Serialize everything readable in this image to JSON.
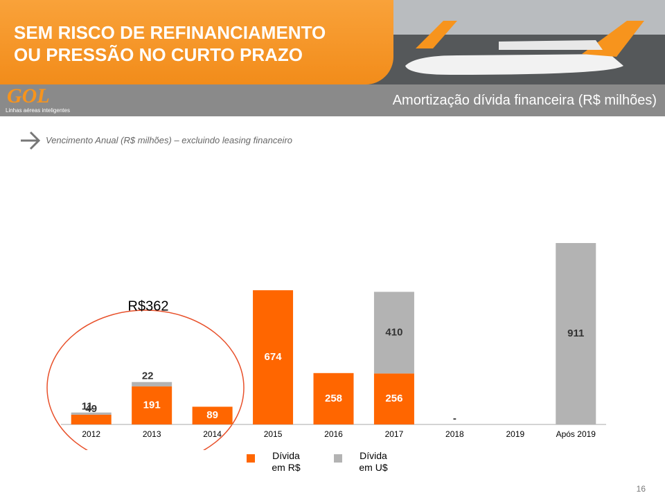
{
  "slide": {
    "heading": [
      "SEM RISCO DE REFINANCIAMENTO",
      "OU PRESSÃO NO CURTO PRAZO"
    ],
    "logo": "GOL",
    "logo_tagline": "Linhas aéreas inteligentes",
    "page": "16"
  },
  "chart_data": {
    "type": "stacked_bar",
    "title": "Amortização dívida financeira (R$ milhões)",
    "subtitle": "Vencimento Anual (R$ milhões) – excluindo leasing financeiro",
    "annotation": "R$362",
    "categories": [
      "2012",
      "2013",
      "2014",
      "2015",
      "2016",
      "2017",
      "2018",
      "2019",
      "Após 2019"
    ],
    "series": [
      {
        "name": "Dívida em R$",
        "color": "#ff6600",
        "values": [
          49,
          191,
          89,
          674,
          258,
          256,
          0,
          null,
          null
        ],
        "value_labels": [
          "49",
          "191",
          "89",
          "674",
          "258",
          "256",
          "-",
          null,
          null
        ]
      },
      {
        "name": "Dívida em U$",
        "color": "#b3b3b3",
        "values": [
          11,
          22,
          null,
          null,
          null,
          410,
          null,
          null,
          911
        ]
      }
    ],
    "legend": "bottom"
  }
}
